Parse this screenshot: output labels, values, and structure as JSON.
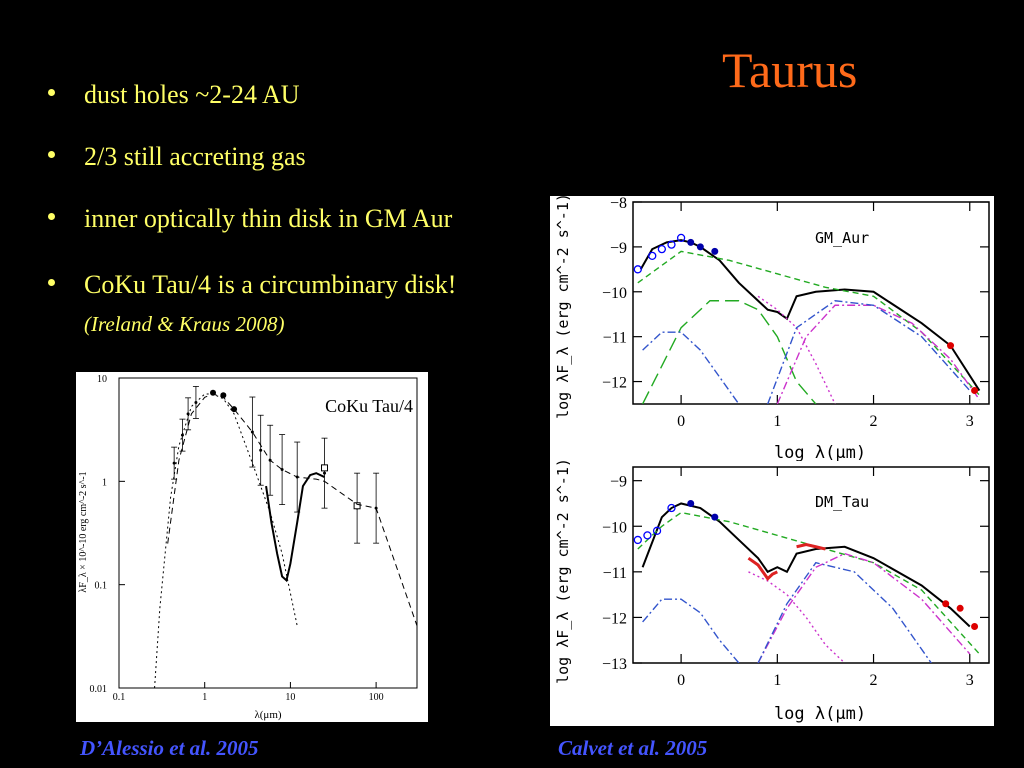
{
  "slide": {
    "title": "Taurus",
    "bullets": [
      "dust holes ~2-24 AU",
      "2/3 still accreting gas",
      "inner optically thin disk in GM Aur",
      "CoKu Tau/4 is a circumbinary disk!"
    ],
    "citation": "(Ireland & Kraus 2008)",
    "captions": {
      "left": "D’Alessio et al. 2005",
      "right": "Calvet et al. 2005"
    },
    "colors": {
      "title": "#ff6a1a",
      "bullet_text": "#ffff66",
      "caption": "#4455ff"
    }
  },
  "chart_data": [
    {
      "type": "scatter",
      "title": "CoKu Tau/4",
      "xlabel": "λ(μm)",
      "ylabel": "λF_λ × 10^-10 erg cm^-2 s^-1",
      "xscale": "log",
      "yscale": "log",
      "xlim": [
        0.1,
        300
      ],
      "ylim": [
        0.01,
        10
      ],
      "xticks": [
        "0.1",
        "1",
        "10",
        "100"
      ],
      "yticks": [
        "0.01",
        "0.1",
        "1",
        "10"
      ],
      "series": [
        {
          "marker": "filled-circle",
          "x": [
            1.25,
            1.65,
            2.2
          ],
          "y": [
            7.2,
            6.8,
            5.0
          ]
        },
        {
          "marker": "errorbar",
          "x": [
            0.44,
            0.55,
            0.64,
            0.79,
            3.6,
            4.5,
            5.8,
            8.0,
            12,
            25,
            60,
            100
          ],
          "y": [
            1.5,
            2.8,
            4.5,
            5.8,
            3.0,
            2.0,
            1.6,
            1.3,
            1.1,
            1.2,
            0.55,
            0.55
          ]
        },
        {
          "marker": "open-square",
          "x": [
            25,
            60
          ],
          "y": [
            1.35,
            0.58
          ]
        },
        {
          "line": "dashed",
          "x": [
            0.37,
            0.5,
            0.7,
            1.0,
            1.25,
            1.65,
            2.2,
            3.6,
            5.8,
            8,
            12,
            20,
            25,
            60,
            100,
            300
          ],
          "y": [
            0.25,
            1.6,
            4.5,
            6.5,
            7.0,
            6.5,
            5.0,
            3.0,
            1.6,
            1.3,
            1.1,
            1.05,
            1.0,
            0.6,
            0.55,
            0.04
          ]
        },
        {
          "line": "dotted",
          "x": [
            0.26,
            0.3,
            0.4,
            0.5,
            0.7,
            1.0,
            1.25,
            1.65,
            2.2,
            3.6,
            5.8,
            8,
            12
          ],
          "y": [
            0.01,
            0.06,
            0.7,
            2.2,
            5.3,
            7.0,
            7.0,
            6.3,
            4.5,
            1.5,
            0.5,
            0.2,
            0.04
          ]
        },
        {
          "line": "solid",
          "x": [
            5.2,
            6,
            7,
            8,
            9,
            10,
            12,
            14,
            17,
            20,
            25
          ],
          "y": [
            0.9,
            0.4,
            0.2,
            0.12,
            0.11,
            0.16,
            0.4,
            0.9,
            1.15,
            1.2,
            1.1
          ]
        }
      ]
    },
    {
      "type": "line",
      "title": "GM_Aur",
      "xlabel": "log λ(μm)",
      "ylabel": "log λF_λ (erg cm^-2 s^-1)",
      "xlim": [
        -0.5,
        3.2
      ],
      "ylim": [
        -12.5,
        -8
      ],
      "xticks": [
        "0",
        "1",
        "2",
        "3"
      ],
      "yticks": [
        "-8",
        "-9",
        "-10",
        "-11",
        "-12"
      ],
      "series": [
        {
          "name": "",
          "color": "#000000",
          "style": "solid",
          "x": [
            -0.42,
            -0.3,
            -0.15,
            0.0,
            0.1,
            0.2,
            0.4,
            0.6,
            0.8,
            0.9,
            1.0,
            1.1,
            1.2,
            1.4,
            1.7,
            2.0,
            2.5,
            2.8,
            3.1
          ],
          "y": [
            -9.5,
            -9.05,
            -8.9,
            -8.85,
            -8.9,
            -9.0,
            -9.3,
            -9.8,
            -10.2,
            -10.4,
            -10.45,
            -10.6,
            -10.1,
            -10.0,
            -9.95,
            -10.0,
            -10.7,
            -11.2,
            -12.2
          ]
        },
        {
          "name": "",
          "color": "#22aa22",
          "style": "dashed",
          "x": [
            -0.45,
            0.0,
            0.5,
            1.0,
            1.5,
            2.0,
            2.5,
            3.1
          ],
          "y": [
            -9.8,
            -9.1,
            -9.3,
            -9.6,
            -9.9,
            -10.1,
            -10.9,
            -12.3
          ]
        },
        {
          "name": "",
          "color": "#22aa22",
          "style": "long-dash",
          "x": [
            -0.4,
            0.0,
            0.3,
            0.6,
            0.8,
            1.0,
            1.2,
            1.4
          ],
          "y": [
            -12.5,
            -10.8,
            -10.2,
            -10.2,
            -10.4,
            -11.0,
            -12.0,
            -12.5
          ]
        },
        {
          "name": "",
          "color": "#3355cc",
          "style": "dash-dot",
          "x": [
            -0.4,
            -0.2,
            0.0,
            0.2,
            0.4,
            0.6
          ],
          "y": [
            -11.3,
            -10.9,
            -10.9,
            -11.3,
            -11.9,
            -12.5
          ]
        },
        {
          "name": "",
          "color": "#cc33cc",
          "style": "dotted",
          "x": [
            0.8,
            1.0,
            1.2,
            1.4,
            1.6
          ],
          "y": [
            -10.1,
            -10.4,
            -10.8,
            -11.6,
            -12.5
          ]
        },
        {
          "name": "",
          "color": "#cc33cc",
          "style": "dash-dot",
          "x": [
            1.0,
            1.3,
            1.6,
            2.0,
            2.4,
            2.8,
            3.1
          ],
          "y": [
            -12.5,
            -11.0,
            -10.3,
            -10.3,
            -10.7,
            -11.5,
            -12.4
          ]
        },
        {
          "name": "",
          "color": "#3355cc",
          "style": "dash-dot",
          "x": [
            0.9,
            1.2,
            1.6,
            2.0,
            2.5,
            3.0
          ],
          "y": [
            -12.5,
            -10.8,
            -10.2,
            -10.3,
            -11.0,
            -12.2
          ]
        }
      ],
      "points": [
        {
          "marker": "open-circle",
          "color": "#0000ff",
          "x": [
            -0.45,
            -0.3,
            -0.2,
            -0.1,
            0.0
          ],
          "y": [
            -9.5,
            -9.2,
            -9.05,
            -8.95,
            -8.8
          ]
        },
        {
          "marker": "filled-circle",
          "color": "#0000aa",
          "x": [
            0.1,
            0.2,
            0.35
          ],
          "y": [
            -8.9,
            -9.0,
            -9.1
          ]
        },
        {
          "marker": "filled-circle",
          "color": "#dd0000",
          "x": [
            2.8,
            3.05
          ],
          "y": [
            -11.2,
            -12.2
          ]
        }
      ]
    },
    {
      "type": "line",
      "title": "DM_Tau",
      "xlabel": "log λ(μm)",
      "ylabel": "log λF_λ (erg cm^-2 s^-1)",
      "xlim": [
        -0.5,
        3.2
      ],
      "ylim": [
        -13,
        -8.7
      ],
      "xticks": [
        "0",
        "1",
        "2",
        "3"
      ],
      "yticks": [
        "-9",
        "-10",
        "-11",
        "-12",
        "-13"
      ],
      "series": [
        {
          "name": "",
          "color": "#000000",
          "style": "solid",
          "x": [
            -0.4,
            -0.2,
            -0.1,
            0.0,
            0.2,
            0.4,
            0.6,
            0.8,
            0.9,
            1.0,
            1.1,
            1.2,
            1.4,
            1.7,
            2.0,
            2.5,
            2.8,
            3.0
          ],
          "y": [
            -10.9,
            -9.8,
            -9.6,
            -9.5,
            -9.6,
            -9.9,
            -10.3,
            -10.7,
            -11.0,
            -10.9,
            -11.0,
            -10.6,
            -10.5,
            -10.45,
            -10.7,
            -11.3,
            -11.8,
            -12.2
          ]
        },
        {
          "name": "",
          "color": "#22aa22",
          "style": "dashed",
          "x": [
            -0.45,
            -0.2,
            0.0,
            0.5,
            1.0,
            1.5,
            2.0,
            2.5,
            3.1
          ],
          "y": [
            -10.5,
            -10.0,
            -9.7,
            -9.9,
            -10.2,
            -10.5,
            -10.8,
            -11.4,
            -12.8
          ]
        },
        {
          "name": "",
          "color": "#3355cc",
          "style": "dash-dot",
          "x": [
            -0.4,
            -0.2,
            0.0,
            0.2,
            0.4,
            0.6
          ],
          "y": [
            -12.1,
            -11.6,
            -11.6,
            -11.9,
            -12.5,
            -13.0
          ]
        },
        {
          "name": "",
          "color": "#cc33cc",
          "style": "dotted",
          "x": [
            0.7,
            0.9,
            1.1,
            1.3,
            1.5,
            1.7
          ],
          "y": [
            -11.0,
            -11.2,
            -11.5,
            -12.0,
            -12.6,
            -13.0
          ]
        },
        {
          "name": "",
          "color": "#cc33cc",
          "style": "dash-dot",
          "x": [
            0.8,
            1.1,
            1.4,
            1.7,
            2.0,
            2.5,
            3.0
          ],
          "y": [
            -13.0,
            -11.8,
            -10.9,
            -10.6,
            -10.8,
            -11.6,
            -12.8
          ]
        },
        {
          "name": "",
          "color": "#3355cc",
          "style": "dash-dot",
          "x": [
            0.8,
            1.1,
            1.4,
            1.8,
            2.2,
            2.6
          ],
          "y": [
            -13.0,
            -11.7,
            -10.8,
            -11.0,
            -11.8,
            -13.0
          ]
        },
        {
          "name": "",
          "color": "#dd2222",
          "style": "solid",
          "x": [
            0.7,
            0.8,
            0.85,
            0.9,
            0.95,
            1.0
          ],
          "y": [
            -10.7,
            -10.85,
            -11.0,
            -11.15,
            -11.05,
            -11.0
          ]
        },
        {
          "name": "",
          "color": "#dd2222",
          "style": "solid",
          "x": [
            1.2,
            1.3,
            1.4,
            1.5
          ],
          "y": [
            -10.45,
            -10.4,
            -10.45,
            -10.5
          ]
        }
      ],
      "points": [
        {
          "marker": "open-circle",
          "color": "#0000ff",
          "x": [
            -0.45,
            -0.35,
            -0.25,
            -0.1
          ],
          "y": [
            -10.3,
            -10.2,
            -10.1,
            -9.6
          ]
        },
        {
          "marker": "filled-circle",
          "color": "#0000aa",
          "x": [
            0.1,
            0.35
          ],
          "y": [
            -9.5,
            -9.8
          ]
        },
        {
          "marker": "filled-circle",
          "color": "#dd0000",
          "x": [
            2.75,
            2.9,
            3.05
          ],
          "y": [
            -11.7,
            -11.8,
            -12.2
          ]
        }
      ]
    }
  ]
}
